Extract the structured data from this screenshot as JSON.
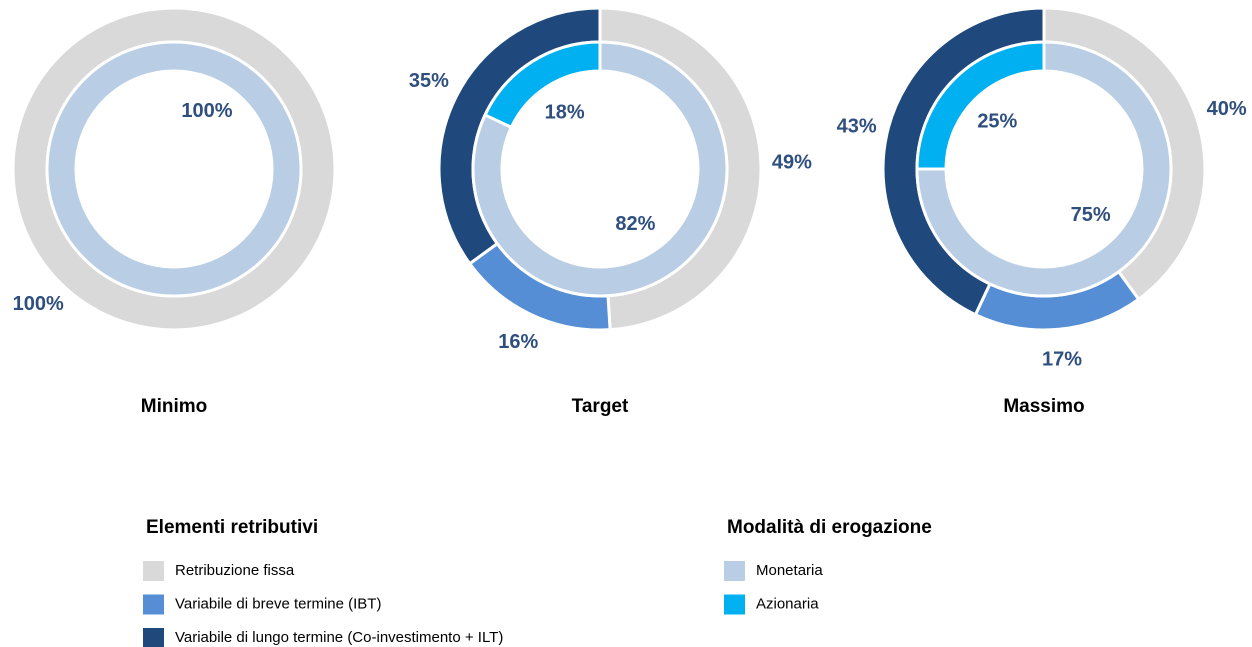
{
  "chart_data": [
    {
      "type": "pie",
      "title": "Minimo",
      "outer": {
        "values": [
          100
        ],
        "value_labels": [
          "100%"
        ]
      },
      "inner": {
        "values": [
          100
        ],
        "value_labels": [
          "100%"
        ]
      }
    },
    {
      "type": "pie",
      "title": "Target",
      "outer": {
        "values": [
          49,
          16,
          35
        ],
        "value_labels": [
          "49%",
          "16%",
          "35%"
        ]
      },
      "inner": {
        "values": [
          82,
          18
        ],
        "value_labels": [
          "82%",
          "18%"
        ]
      }
    },
    {
      "type": "pie",
      "title": "Massimo",
      "outer": {
        "values": [
          40,
          17,
          43
        ],
        "value_labels": [
          "40%",
          "17%",
          "43%"
        ]
      },
      "inner": {
        "values": [
          75,
          25
        ],
        "value_labels": [
          "75%",
          "25%"
        ]
      }
    }
  ],
  "legend_groups": [
    {
      "title": "Elementi retributivi",
      "series": [
        {
          "name": "Retribuzione fissa",
          "color": "#d9d9d9"
        },
        {
          "name": "Variabile di breve termine (IBT)",
          "color": "#558ed5"
        },
        {
          "name": "Variabile di lungo termine (Co-investimento + ILT)",
          "color": "#1f497d"
        }
      ]
    },
    {
      "title": "Modalità di erogazione",
      "series": [
        {
          "name": "Monetaria",
          "color": "#b9cde5"
        },
        {
          "name": "Azionaria",
          "color": "#00b0f0"
        }
      ]
    }
  ]
}
